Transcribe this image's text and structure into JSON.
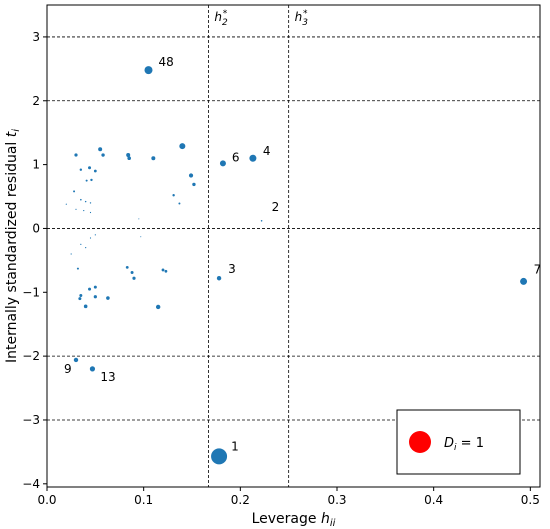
{
  "chart_data": {
    "type": "scatter",
    "xlabel": "Leverage h_ii",
    "ylabel": "Internally standardized residual t_i",
    "xlim": [
      0.0,
      0.51
    ],
    "ylim": [
      -4.05,
      3.5
    ],
    "xticks": [
      0.0,
      0.1,
      0.2,
      0.3,
      0.4,
      0.5
    ],
    "xtick_labels": [
      "0.0",
      "0.1",
      "0.2",
      "0.3",
      "0.4",
      "0.5"
    ],
    "yticks": [
      3,
      2,
      1,
      0,
      -1,
      -2,
      -3,
      -4
    ],
    "ytick_labels": [
      "3",
      "2",
      "1",
      "0",
      "−1",
      "−2",
      "−3",
      "−4"
    ],
    "grid": false,
    "series_color": "#1f77b4",
    "hlines": [
      {
        "y": 3,
        "style": "dashed"
      },
      {
        "y": 2,
        "style": "dashed"
      },
      {
        "y": 0,
        "style": "dashed"
      },
      {
        "y": -2,
        "style": "dashed"
      },
      {
        "y": -3,
        "style": "dashed"
      }
    ],
    "vlines": [
      {
        "x": 0.167,
        "label": "h2*",
        "style": "dashed"
      },
      {
        "x": 0.25,
        "label": "h3*",
        "style": "dashed"
      }
    ],
    "points": [
      {
        "x": 0.105,
        "y": 2.48,
        "size": 4,
        "label": "48"
      },
      {
        "x": 0.182,
        "y": 1.02,
        "size": 3,
        "label": "6"
      },
      {
        "x": 0.213,
        "y": 1.1,
        "size": 3.5,
        "label": "4"
      },
      {
        "x": 0.222,
        "y": 0.12,
        "size": 0.8,
        "label": "2"
      },
      {
        "x": 0.178,
        "y": -0.78,
        "size": 2.2,
        "label": "3"
      },
      {
        "x": 0.493,
        "y": -0.83,
        "size": 3.5,
        "label": "7"
      },
      {
        "x": 0.03,
        "y": -2.06,
        "size": 2.2,
        "label": "9"
      },
      {
        "x": 0.047,
        "y": -2.2,
        "size": 2.6,
        "label": "13"
      },
      {
        "x": 0.178,
        "y": -3.57,
        "size": 8,
        "label": "1"
      },
      {
        "x": 0.14,
        "y": 1.29,
        "size": 3,
        "label": ""
      },
      {
        "x": 0.055,
        "y": 1.24,
        "size": 2,
        "label": ""
      },
      {
        "x": 0.03,
        "y": 1.15,
        "size": 1.6,
        "label": ""
      },
      {
        "x": 0.058,
        "y": 1.15,
        "size": 1.7,
        "label": ""
      },
      {
        "x": 0.084,
        "y": 1.15,
        "size": 2,
        "label": ""
      },
      {
        "x": 0.085,
        "y": 1.1,
        "size": 1.8,
        "label": ""
      },
      {
        "x": 0.11,
        "y": 1.1,
        "size": 2,
        "label": ""
      },
      {
        "x": 0.044,
        "y": 0.95,
        "size": 1.5,
        "label": ""
      },
      {
        "x": 0.05,
        "y": 0.9,
        "size": 1.4,
        "label": ""
      },
      {
        "x": 0.035,
        "y": 0.92,
        "size": 1.2,
        "label": ""
      },
      {
        "x": 0.046,
        "y": 0.76,
        "size": 1.2,
        "label": ""
      },
      {
        "x": 0.149,
        "y": 0.83,
        "size": 2.1,
        "label": ""
      },
      {
        "x": 0.152,
        "y": 0.69,
        "size": 1.7,
        "label": ""
      },
      {
        "x": 0.041,
        "y": 0.75,
        "size": 1,
        "label": ""
      },
      {
        "x": 0.028,
        "y": 0.58,
        "size": 1,
        "label": ""
      },
      {
        "x": 0.131,
        "y": 0.52,
        "size": 1.2,
        "label": ""
      },
      {
        "x": 0.137,
        "y": 0.39,
        "size": 1,
        "label": ""
      },
      {
        "x": 0.035,
        "y": 0.45,
        "size": 0.8,
        "label": ""
      },
      {
        "x": 0.04,
        "y": 0.42,
        "size": 0.7,
        "label": ""
      },
      {
        "x": 0.045,
        "y": 0.4,
        "size": 0.7,
        "label": ""
      },
      {
        "x": 0.02,
        "y": 0.38,
        "size": 0.6,
        "label": ""
      },
      {
        "x": 0.03,
        "y": 0.3,
        "size": 0.6,
        "label": ""
      },
      {
        "x": 0.038,
        "y": 0.28,
        "size": 0.6,
        "label": ""
      },
      {
        "x": 0.045,
        "y": 0.25,
        "size": 0.6,
        "label": ""
      },
      {
        "x": 0.095,
        "y": 0.15,
        "size": 0.5,
        "label": ""
      },
      {
        "x": 0.05,
        "y": -0.1,
        "size": 0.6,
        "label": ""
      },
      {
        "x": 0.045,
        "y": -0.15,
        "size": 0.6,
        "label": ""
      },
      {
        "x": 0.035,
        "y": -0.25,
        "size": 0.6,
        "label": ""
      },
      {
        "x": 0.04,
        "y": -0.3,
        "size": 0.6,
        "label": ""
      },
      {
        "x": 0.025,
        "y": -0.4,
        "size": 0.6,
        "label": ""
      },
      {
        "x": 0.097,
        "y": -0.13,
        "size": 0.5,
        "label": ""
      },
      {
        "x": 0.032,
        "y": -0.63,
        "size": 1,
        "label": ""
      },
      {
        "x": 0.083,
        "y": -0.61,
        "size": 1.4,
        "label": ""
      },
      {
        "x": 0.088,
        "y": -0.69,
        "size": 1.5,
        "label": ""
      },
      {
        "x": 0.09,
        "y": -0.78,
        "size": 1.6,
        "label": ""
      },
      {
        "x": 0.12,
        "y": -0.65,
        "size": 1.4,
        "label": ""
      },
      {
        "x": 0.123,
        "y": -0.67,
        "size": 1.4,
        "label": ""
      },
      {
        "x": 0.044,
        "y": -0.95,
        "size": 1.5,
        "label": ""
      },
      {
        "x": 0.05,
        "y": -0.92,
        "size": 1.5,
        "label": ""
      },
      {
        "x": 0.035,
        "y": -1.05,
        "size": 1.5,
        "label": ""
      },
      {
        "x": 0.034,
        "y": -1.1,
        "size": 1.5,
        "label": ""
      },
      {
        "x": 0.05,
        "y": -1.07,
        "size": 1.6,
        "label": ""
      },
      {
        "x": 0.063,
        "y": -1.09,
        "size": 1.8,
        "label": ""
      },
      {
        "x": 0.04,
        "y": -1.22,
        "size": 1.8,
        "label": ""
      },
      {
        "x": 0.115,
        "y": -1.23,
        "size": 2.2,
        "label": ""
      }
    ],
    "legend": {
      "label": "D_i = 1",
      "marker_color": "#ff0000",
      "placement": "bottom-right"
    }
  }
}
